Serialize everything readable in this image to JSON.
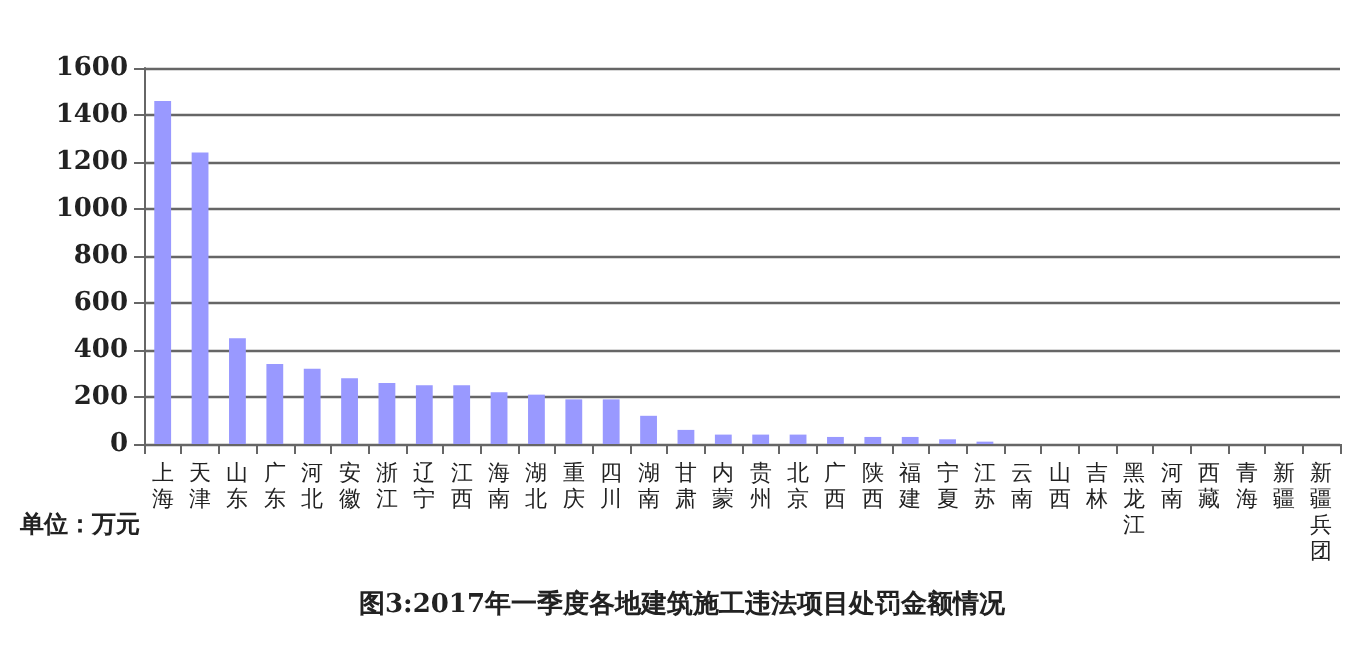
{
  "chart_data": {
    "type": "bar",
    "title": "图3:2017年一季度各地建筑施工违法项目处罚金额情况",
    "ylabel": "单位：万元",
    "categories": [
      "上海",
      "天津",
      "山东",
      "广东",
      "河北",
      "安徽",
      "浙江",
      "辽宁",
      "江西",
      "海南",
      "湖北",
      "重庆",
      "四川",
      "湖南",
      "甘肃",
      "内蒙",
      "贵州",
      "北京",
      "广西",
      "陕西",
      "福建",
      "宁夏",
      "江苏",
      "云南",
      "山西",
      "吉林",
      "黑龙江",
      "河南",
      "西藏",
      "青海",
      "新疆",
      "新疆兵团"
    ],
    "values": [
      1460,
      1240,
      450,
      340,
      320,
      280,
      260,
      250,
      250,
      220,
      210,
      190,
      190,
      120,
      60,
      40,
      40,
      40,
      30,
      30,
      30,
      20,
      10,
      0,
      0,
      0,
      0,
      0,
      0,
      0,
      0,
      0
    ],
    "color": "#9999ff",
    "ylim": [
      0,
      1600
    ],
    "yticks": [
      0,
      200,
      400,
      600,
      800,
      1000,
      1200,
      1400,
      1600
    ],
    "grid": "y"
  }
}
